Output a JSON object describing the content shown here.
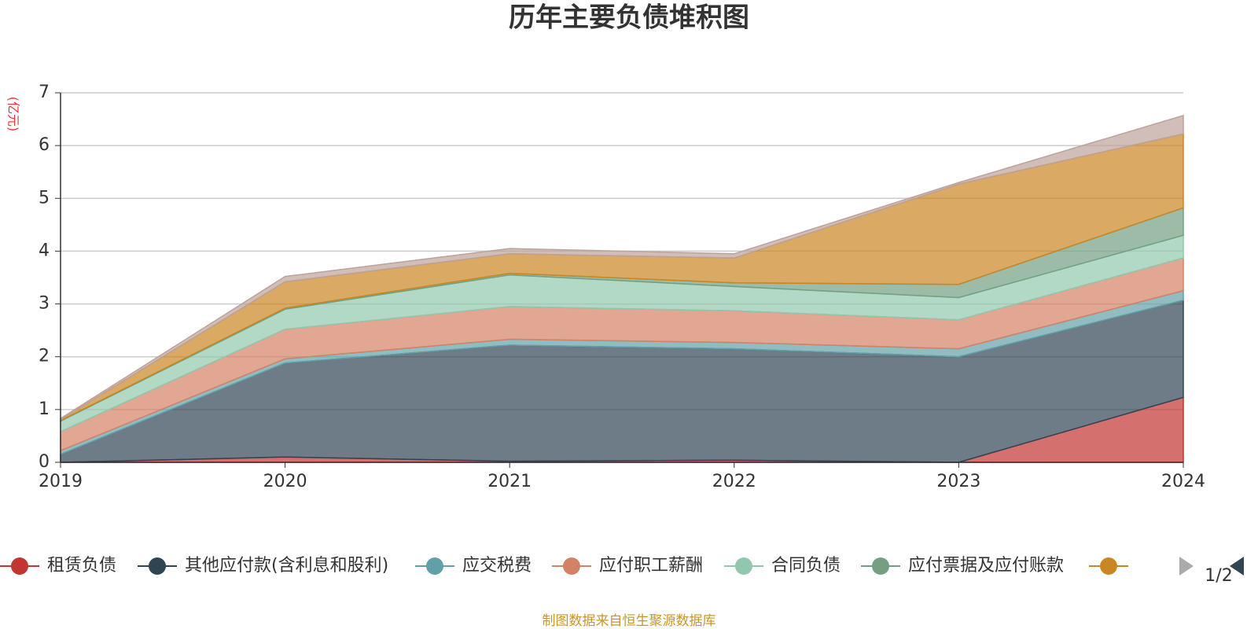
{
  "chart_data": {
    "type": "stacked-area",
    "title": "历年主要负债堆积图",
    "y_unit": "(亿元)",
    "categories": [
      "2019",
      "2020",
      "2021",
      "2022",
      "2023",
      "2024"
    ],
    "series": [
      {
        "name": "租赁负债",
        "color": "#c23531",
        "values": [
          0,
          0.1,
          0.02,
          0.04,
          0,
          1.23
        ]
      },
      {
        "name": "其他应付款(含利息和股利)",
        "color": "#2f4554",
        "values": [
          0.15,
          1.78,
          2.2,
          2.11,
          2.0,
          1.84
        ]
      },
      {
        "name": "应交税费",
        "color": "#61a0a8",
        "values": [
          0.07,
          0.08,
          0.11,
          0.12,
          0.15,
          0.18
        ]
      },
      {
        "name": "应付职工薪酬",
        "color": "#d48265",
        "values": [
          0.36,
          0.56,
          0.62,
          0.6,
          0.55,
          0.62
        ]
      },
      {
        "name": "合同负债",
        "color": "#91c7ae",
        "values": [
          0.2,
          0.38,
          0.6,
          0.46,
          0.42,
          0.43
        ]
      },
      {
        "name": "应付票据及应付账款",
        "color": "#749f83",
        "values": [
          0.01,
          0.02,
          0.03,
          0.07,
          0.25,
          0.52
        ]
      },
      {
        "color": "#ca8622",
        "values": [
          0.02,
          0.5,
          0.37,
          0.47,
          1.9,
          1.4
        ]
      },
      {
        "color": "#bda29a",
        "values": [
          0.02,
          0.1,
          0.1,
          0.08,
          0.03,
          0.35
        ]
      }
    ],
    "ylim": [
      0,
      7
    ],
    "yticks": [
      0,
      1,
      2,
      3,
      4,
      5,
      6,
      7
    ],
    "grid": true,
    "legend_page": "1/2",
    "source": "制图数据来自恒生聚源数据库"
  }
}
